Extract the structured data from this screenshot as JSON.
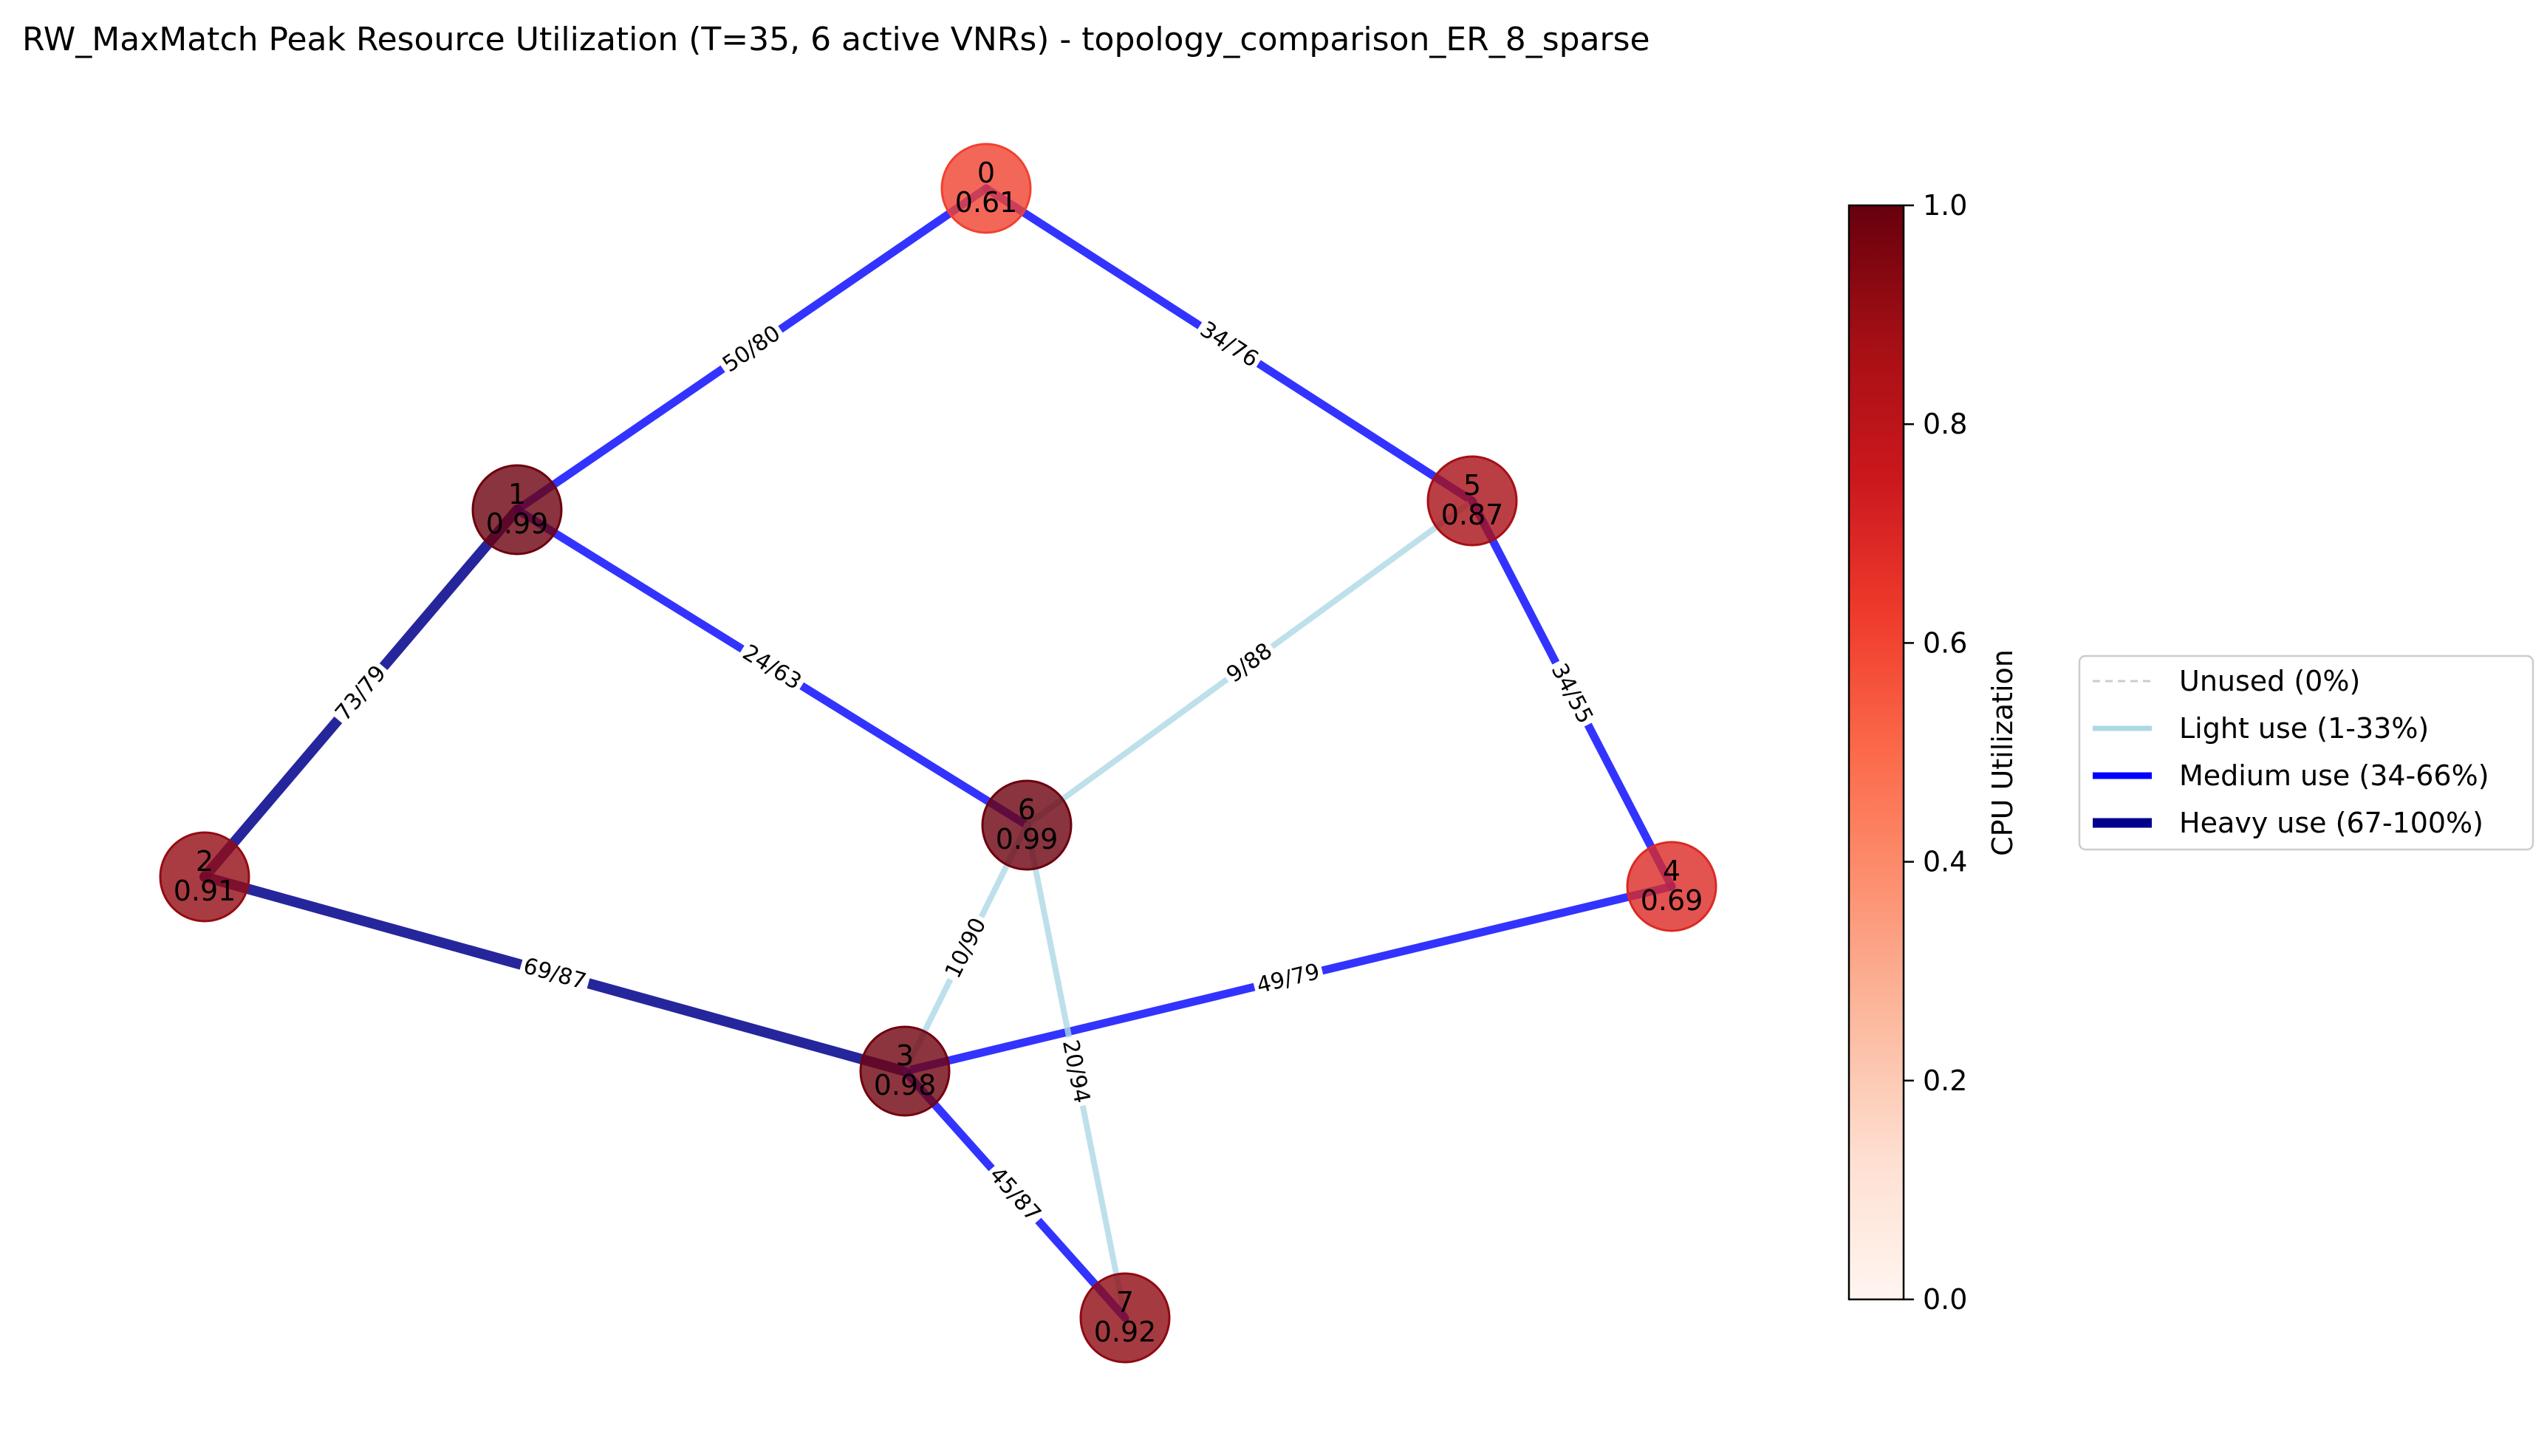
{
  "title": "RW_MaxMatch Peak Resource Utilization (T=35, 6 active VNRs) - topology_comparison_ER_8_sparse",
  "colors": {
    "light": "#add8e6",
    "medium": "#0000ff",
    "heavy": "#00008b",
    "unused": "#cccccc",
    "cmap_low": "#fff5f0",
    "cmap_mid": "#fb6a4a",
    "cmap_high": "#67000d"
  },
  "nodes": [
    {
      "id": "0",
      "util": "0.61",
      "value": 0.61
    },
    {
      "id": "1",
      "util": "0.99",
      "value": 0.99
    },
    {
      "id": "2",
      "util": "0.91",
      "value": 0.91
    },
    {
      "id": "3",
      "util": "0.98",
      "value": 0.98
    },
    {
      "id": "4",
      "util": "0.69",
      "value": 0.69
    },
    {
      "id": "5",
      "util": "0.87",
      "value": 0.87
    },
    {
      "id": "6",
      "util": "0.99",
      "value": 0.99
    },
    {
      "id": "7",
      "util": "0.92",
      "value": 0.92
    }
  ],
  "edges": [
    {
      "source": "0",
      "target": "1",
      "label": "50/80",
      "usage": "medium"
    },
    {
      "source": "0",
      "target": "5",
      "label": "34/76",
      "usage": "medium"
    },
    {
      "source": "1",
      "target": "2",
      "label": "73/79",
      "usage": "heavy"
    },
    {
      "source": "1",
      "target": "6",
      "label": "24/63",
      "usage": "medium"
    },
    {
      "source": "5",
      "target": "6",
      "label": "9/88",
      "usage": "light"
    },
    {
      "source": "5",
      "target": "4",
      "label": "34/55",
      "usage": "medium"
    },
    {
      "source": "2",
      "target": "3",
      "label": "69/87",
      "usage": "heavy"
    },
    {
      "source": "3",
      "target": "4",
      "label": "49/79",
      "usage": "medium"
    },
    {
      "source": "6",
      "target": "3",
      "label": "10/90",
      "usage": "light"
    },
    {
      "source": "6",
      "target": "7",
      "label": "20/94",
      "usage": "light"
    },
    {
      "source": "3",
      "target": "7",
      "label": "45/87",
      "usage": "medium"
    }
  ],
  "colorbar": {
    "label": "CPU Utilization",
    "ticks": [
      {
        "value": 0.0,
        "label": "0.0"
      },
      {
        "value": 0.2,
        "label": "0.2"
      },
      {
        "value": 0.4,
        "label": "0.4"
      },
      {
        "value": 0.6,
        "label": "0.6"
      },
      {
        "value": 0.8,
        "label": "0.8"
      },
      {
        "value": 1.0,
        "label": "1.0"
      }
    ],
    "range": [
      0,
      1
    ]
  },
  "legend": {
    "items": [
      {
        "label": "Unused (0%)",
        "style": "unused"
      },
      {
        "label": "Light use (1-33%)",
        "style": "light"
      },
      {
        "label": "Medium use (34-66%)",
        "style": "medium"
      },
      {
        "label": "Heavy use (67-100%)",
        "style": "heavy"
      }
    ]
  }
}
